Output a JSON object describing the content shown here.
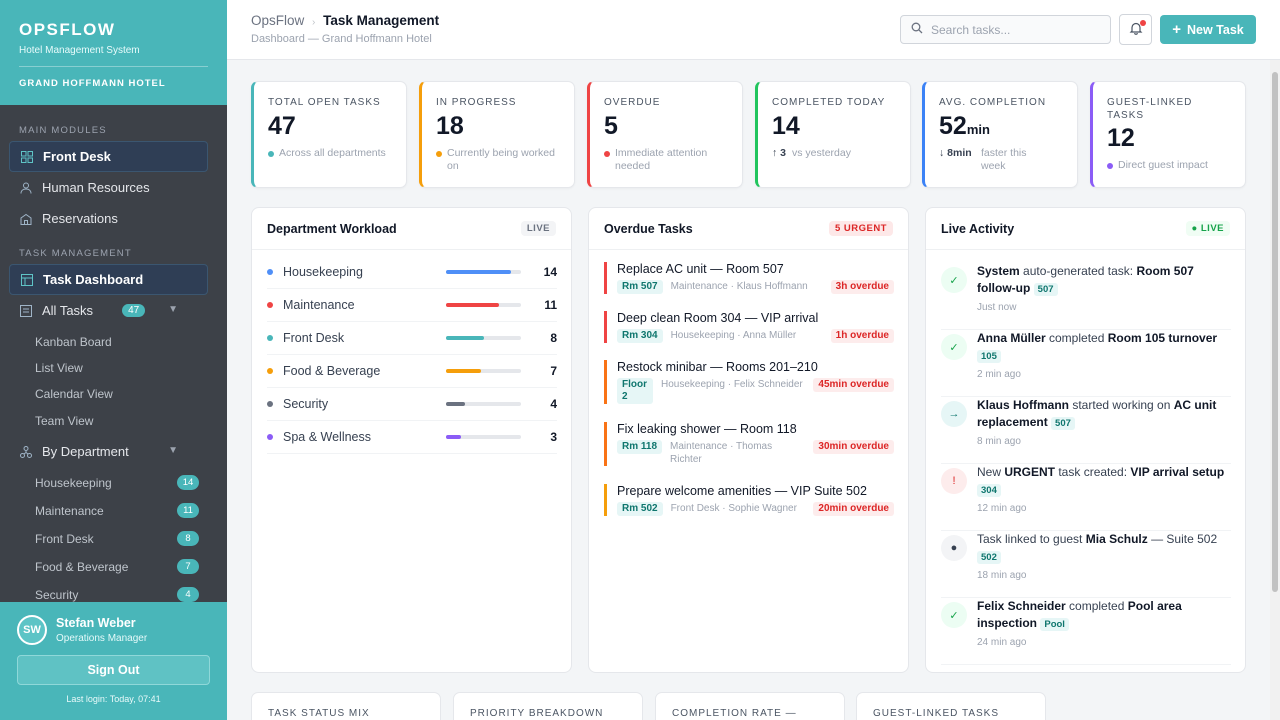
{
  "brand": {
    "name": "OPSFLOW",
    "subtitle": "Hotel Management System",
    "hotel": "GRAND HOFFMANN HOTEL"
  },
  "sidebar": {
    "main_modules_label": "MAIN MODULES",
    "main_modules": [
      {
        "label": "Front Desk",
        "icon": "grid-icon"
      },
      {
        "label": "Human Resources",
        "icon": "user-icon"
      },
      {
        "label": "Reservations",
        "icon": "building-icon"
      }
    ],
    "task_mgmt_label": "TASK MANAGEMENT",
    "task_dashboard": "Task Dashboard",
    "all_tasks": {
      "label": "All Tasks",
      "count": "47"
    },
    "views": [
      "Kanban Board",
      "List View",
      "Calendar View",
      "Team View"
    ],
    "by_department": "By Department",
    "departments": [
      {
        "label": "Housekeeping",
        "count": "14"
      },
      {
        "label": "Maintenance",
        "count": "11"
      },
      {
        "label": "Front Desk",
        "count": "8"
      },
      {
        "label": "Food & Beverage",
        "count": "7"
      },
      {
        "label": "Security",
        "count": "4"
      }
    ]
  },
  "user": {
    "initials": "SW",
    "name": "Stefan Weber",
    "role": "Operations Manager",
    "signout": "Sign Out",
    "last_login": "Last login: Today, 07:41"
  },
  "header": {
    "app": "OpsFlow",
    "title": "Task Management",
    "subtitle": "Dashboard — Grand Hoffmann Hotel",
    "search_placeholder": "Search tasks...",
    "new_task": "New Task"
  },
  "kpis": [
    {
      "label": "TOTAL OPEN TASKS",
      "value": "47",
      "unit": "",
      "note": "Across all departments",
      "color": "#49b6b9"
    },
    {
      "label": "IN PROGRESS",
      "value": "18",
      "unit": "",
      "note": "Currently being worked on",
      "color": "#f59e0b"
    },
    {
      "label": "OVERDUE",
      "value": "5",
      "unit": "",
      "note": "Immediate attention needed",
      "color": "#ef4444"
    },
    {
      "label": "COMPLETED TODAY",
      "value": "14",
      "unit": "",
      "note_strong": "↑ 3",
      "note": "vs yesterday",
      "color": "#22c55e"
    },
    {
      "label": "AVG. COMPLETION",
      "value": "52",
      "unit": "min",
      "note_strong": "↓ 8min",
      "note": "faster this week",
      "color": "#3b82f6"
    },
    {
      "label": "GUEST-LINKED TASKS",
      "value": "12",
      "unit": "",
      "note": "Direct guest impact",
      "color": "#8b5cf6"
    }
  ],
  "workload": {
    "title": "Department Workload",
    "tag": "LIVE",
    "rows": [
      {
        "name": "Housekeeping",
        "count": "14",
        "level": 0.86,
        "color": "#4f8ff7"
      },
      {
        "name": "Maintenance",
        "count": "11",
        "level": 0.7,
        "color": "#ef4444"
      },
      {
        "name": "Front Desk",
        "count": "8",
        "level": 0.5,
        "color": "#49b6b9"
      },
      {
        "name": "Food & Beverage",
        "count": "7",
        "level": 0.46,
        "color": "#f59e0b"
      },
      {
        "name": "Security",
        "count": "4",
        "level": 0.25,
        "color": "#6b7280"
      },
      {
        "name": "Spa & Wellness",
        "count": "3",
        "level": 0.2,
        "color": "#8b5cf6"
      }
    ]
  },
  "overdue": {
    "title": "Overdue Tasks",
    "tag": "5 URGENT",
    "items": [
      {
        "title": "Replace AC unit — Room 507",
        "room": "Rm 507",
        "meta": "Maintenance · Klaus Hoffmann",
        "overdue": "3h overdue",
        "color": "#ef4444"
      },
      {
        "title": "Deep clean Room 304 — VIP arrival",
        "room": "Rm 304",
        "meta": "Housekeeping · Anna Müller",
        "overdue": "1h overdue",
        "color": "#ef4444"
      },
      {
        "title": "Restock minibar — Rooms 201–210",
        "room": "Floor 2",
        "meta": "Housekeeping · Felix Schneider",
        "overdue": "45min overdue",
        "color": "#f97316"
      },
      {
        "title": "Fix leaking shower — Room 118",
        "room": "Rm 118",
        "meta": "Maintenance · Thomas Richter",
        "overdue": "30min overdue",
        "color": "#f97316"
      },
      {
        "title": "Prepare welcome amenities — VIP Suite 502",
        "room": "Rm 502",
        "meta": "Front Desk · Sophie Wagner",
        "overdue": "20min overdue",
        "color": "#f59e0b"
      }
    ]
  },
  "activity": {
    "title": "Live Activity",
    "tag": "● LIVE",
    "items": [
      {
        "a": "System",
        "b": " auto-generated task: ",
        "c": "Room 507 follow-up",
        "chip": "507",
        "time": "Just now",
        "icon": "✓"
      },
      {
        "a": "Anna Müller",
        "b": " completed ",
        "c": "Room 105 turnover",
        "chip": "105",
        "time": "2 min ago",
        "icon": "✓"
      },
      {
        "a": "Klaus Hoffmann",
        "b": " started working on ",
        "c": "AC unit replacement",
        "chip": "507",
        "time": "8 min ago",
        "icon": "→"
      },
      {
        "a": "New ",
        "b": "URGENT",
        "c": " task created: ",
        "d": "VIP arrival setup",
        "chip": "304",
        "time": "12 min ago",
        "icon": "!"
      },
      {
        "a": "Task linked to guest ",
        "b": "Mia Schulz",
        "c": " — Suite 502",
        "chip": "502",
        "time": "18 min ago",
        "icon": "●"
      },
      {
        "a": "Felix Schneider",
        "b": " completed ",
        "c": "Pool area inspection",
        "chip": "Pool",
        "time": "24 min ago",
        "icon": "✓"
      }
    ]
  },
  "bottom_cards": [
    "TASK STATUS MIX",
    "PRIORITY BREAKDOWN",
    "COMPLETION RATE —",
    "GUEST-LINKED TASKS"
  ]
}
